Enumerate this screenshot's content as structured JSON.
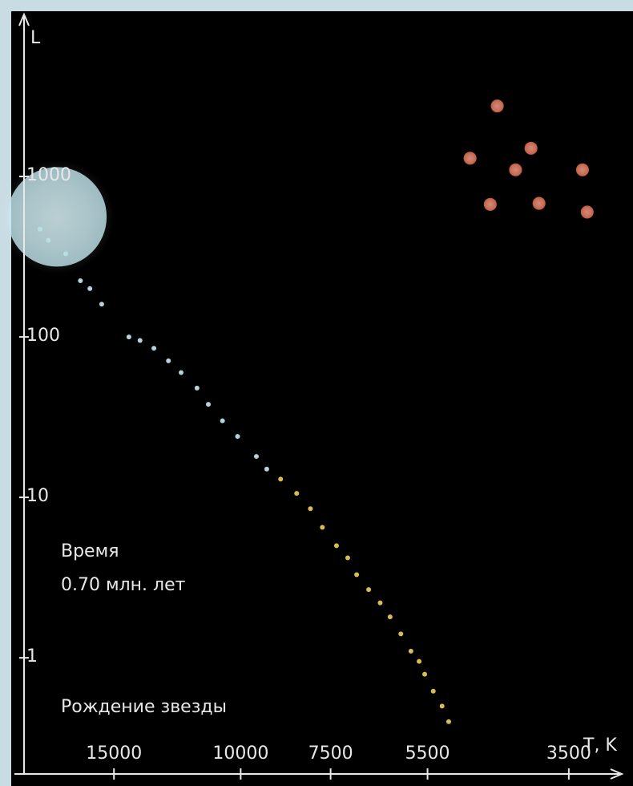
{
  "chart_data": {
    "type": "scatter",
    "ylabel": "L",
    "xlabel": "T, K",
    "annotations": [
      "Время",
      "0.70 млн. лет",
      "Рождение звезды"
    ],
    "xscale": "log",
    "yscale": "log",
    "x_reversed": true,
    "xlim": [
      20000,
      3000
    ],
    "ylim": [
      0.2,
      10000
    ],
    "xticks": [
      15000,
      10000,
      7500,
      5500,
      3500
    ],
    "yticks": [
      1,
      10,
      100,
      1000
    ],
    "series": [
      {
        "color": "#bfe6ee",
        "marker_size": 62,
        "x": [
          18000
        ],
        "values": [
          560
        ]
      },
      {
        "color": "#bcdfe6",
        "marker_size": 3,
        "x": [
          19000,
          18500,
          17500,
          16700,
          16200,
          15600,
          14300,
          13800,
          13200,
          12600,
          12100,
          11500,
          11090,
          10600,
          10100,
          9510,
          9200
        ],
        "values": [
          470,
          400,
          330,
          224,
          200,
          160,
          100,
          95,
          85,
          71,
          60,
          48,
          38,
          30,
          24,
          18,
          15
        ]
      },
      {
        "color": "#e6c45a",
        "marker_size": 3,
        "x": [
          8800,
          8360,
          8000,
          7700,
          7360,
          7100,
          6900,
          6640,
          6400,
          6200,
          5990,
          5800,
          5650,
          5550,
          5400,
          5250,
          5140
        ],
        "values": [
          13,
          10.6,
          8.5,
          6.5,
          5.0,
          4.2,
          3.3,
          2.66,
          2.2,
          1.8,
          1.41,
          1.1,
          0.95,
          0.79,
          0.62,
          0.5,
          0.4
        ]
      },
      {
        "color": "#c8583c",
        "marker_size": 8,
        "x": [
          4400,
          4800,
          3950,
          4150,
          3350,
          4500,
          3850,
          3300
        ],
        "values": [
          2750,
          1300,
          1500,
          1100,
          1100,
          670,
          680,
          600
        ]
      }
    ]
  }
}
